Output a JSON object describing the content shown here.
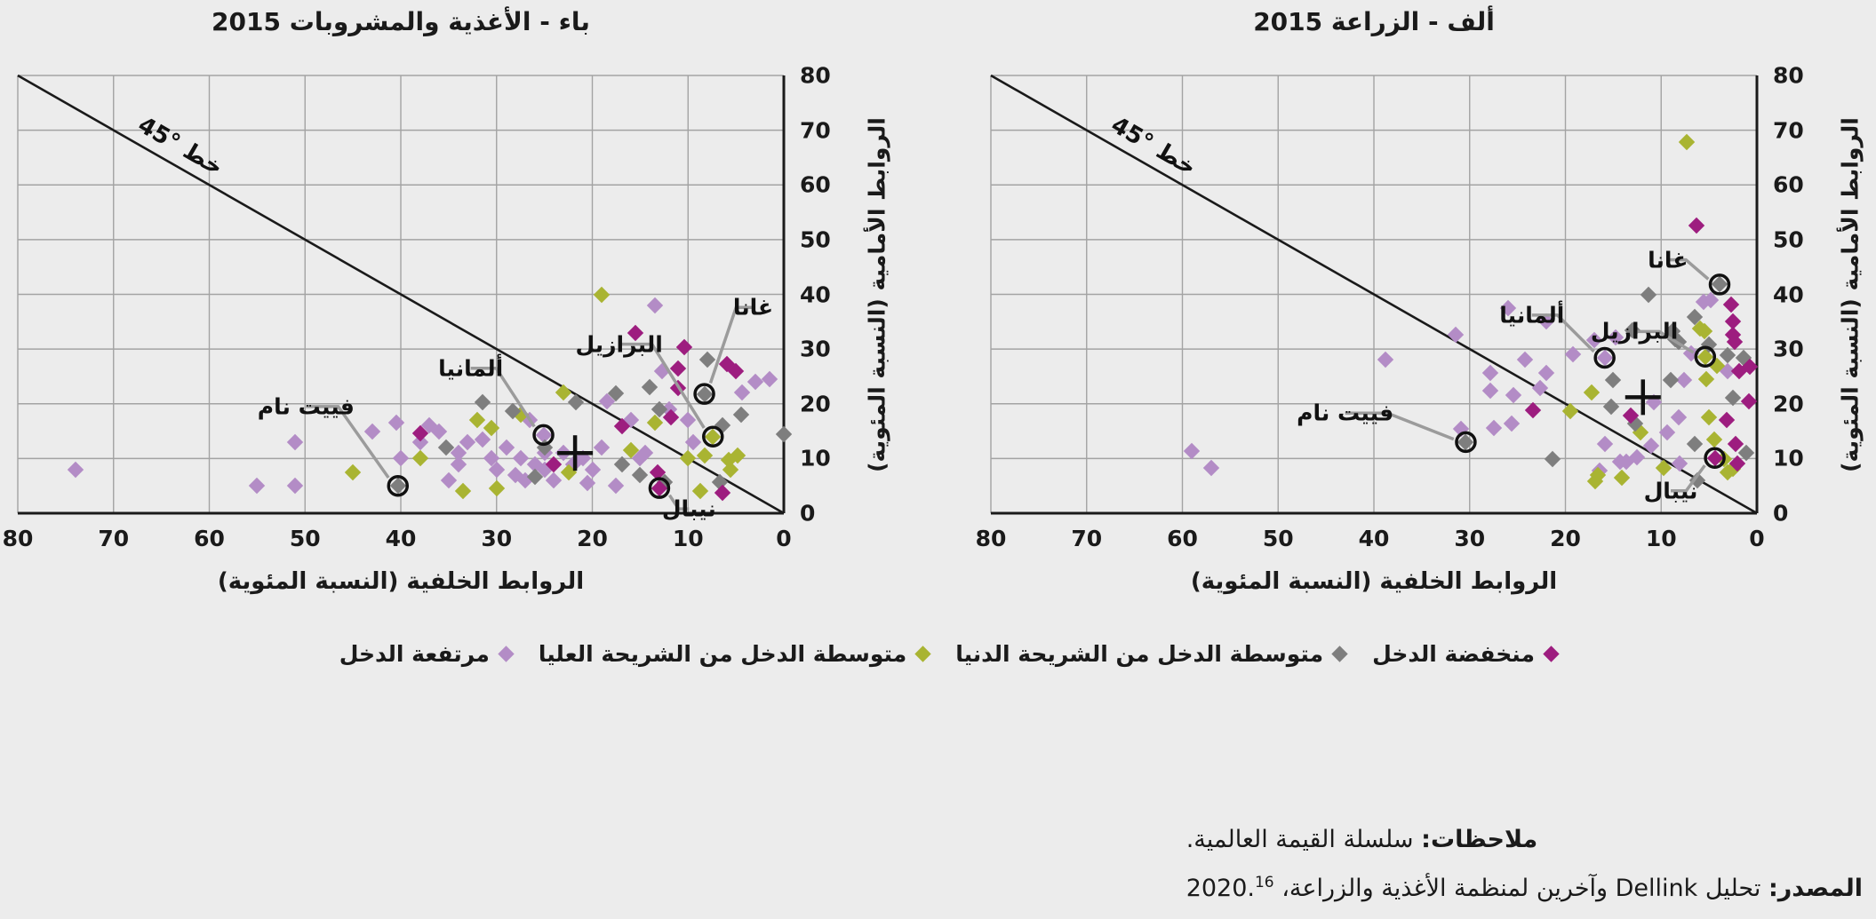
{
  "colors": {
    "low": "#9D1D7F",
    "lower_middle": "#7E7E7E",
    "upper_middle": "#A9B432",
    "high": "#B38CC6",
    "grid": "#A3A3A3",
    "axis": "#1A1A1A",
    "background": "#ECECEC",
    "leader": "#9B9B9B"
  },
  "legend": [
    {
      "key": "low",
      "label": "منخفضة الدخل"
    },
    {
      "key": "lower_middle",
      "label": "متوسطة الدخل من الشريحة الدنيا"
    },
    {
      "key": "upper_middle",
      "label": "متوسطة الدخل من الشريحة العليا"
    },
    {
      "key": "high",
      "label": "مرتفعة الدخل"
    }
  ],
  "axes": {
    "x_label": "الروابط الخلفية (النسبة المئوية)",
    "y_label": "الروابط الأمامية (النسبة المئوية)",
    "ticks": [
      0,
      10,
      20,
      30,
      40,
      50,
      60,
      70,
      80
    ],
    "max": 80
  },
  "line45_label": "خط °45",
  "notes": {
    "label": "ملاحظات:",
    "text": " سلسلة القيمة العالمية."
  },
  "source": {
    "label": "المصدر:",
    "text": " تحليل Dellink  وآخرين لمنظمة الأغذية والزراعة، 2020.",
    "sup": "16"
  },
  "chart_data": [
    {
      "id": "A",
      "type": "scatter",
      "title": "ألف - الزراعة 2015",
      "xlabel": "الروابط الخلفية (النسبة المئوية)",
      "ylabel": "الروابط الأمامية (النسبة المئوية)",
      "xlim": [
        80,
        0
      ],
      "ylim": [
        0,
        80
      ],
      "grid": true,
      "mean": [
        11.9,
        21.2
      ],
      "annotations": [
        {
          "label": "غانا",
          "x": 3.9,
          "y": 41.8,
          "lx": 9.3,
          "ly": 46.3
        },
        {
          "label": "ألمانيا",
          "x": 15.9,
          "y": 28.4,
          "lx": 23.5,
          "ly": 36.2
        },
        {
          "label": "البرازيل",
          "x": 5.4,
          "y": 28.6,
          "lx": 12.8,
          "ly": 33.2
        },
        {
          "label": "فييت نام",
          "x": 30.4,
          "y": 13,
          "lx": 43,
          "ly": 18.3
        },
        {
          "label": "نيبال",
          "x": 4.4,
          "y": 10.1,
          "lx": 9,
          "ly": 4.1
        }
      ],
      "series": {
        "high": [
          [
            59,
            11.4
          ],
          [
            57,
            8.3
          ],
          [
            38.8,
            28
          ],
          [
            31.5,
            32.6
          ],
          [
            26,
            37.5
          ],
          [
            22,
            35
          ],
          [
            27.8,
            25.6
          ],
          [
            24.2,
            28.1
          ],
          [
            22,
            25.6
          ],
          [
            27.8,
            22.4
          ],
          [
            25.4,
            21.6
          ],
          [
            22.6,
            22.9
          ],
          [
            19.2,
            29
          ],
          [
            17,
            31.6
          ],
          [
            14.8,
            32.1
          ],
          [
            30.9,
            15.4
          ],
          [
            27.5,
            15.6
          ],
          [
            25.6,
            16.4
          ],
          [
            15.9,
            12.7
          ],
          [
            16.4,
            7.8
          ],
          [
            14.3,
            9.4
          ],
          [
            13.6,
            9.4
          ],
          [
            12.5,
            10.2
          ],
          [
            11,
            12.3
          ],
          [
            10.8,
            20.3
          ],
          [
            9.4,
            14.8
          ],
          [
            8.2,
            17.5
          ],
          [
            8.1,
            9.1
          ],
          [
            7.6,
            24.4
          ],
          [
            6.9,
            29.2
          ],
          [
            5.6,
            38.6
          ],
          [
            4.8,
            38.9
          ],
          [
            3.1,
            26
          ],
          [
            15.9,
            28.4
          ]
        ],
        "upper_middle": [
          [
            7.3,
            67.8
          ],
          [
            5.9,
            33.8
          ],
          [
            5.5,
            33.3
          ],
          [
            4.2,
            27
          ],
          [
            5.3,
            24.5
          ],
          [
            5,
            17.5
          ],
          [
            4.5,
            13.5
          ],
          [
            3.4,
            9.9
          ],
          [
            2.5,
            8.1
          ],
          [
            9.7,
            8.3
          ],
          [
            14.1,
            6.5
          ],
          [
            16.6,
            7
          ],
          [
            16.9,
            5.9
          ],
          [
            17.3,
            22.1
          ],
          [
            19.5,
            18.7
          ],
          [
            12.2,
            14.8
          ],
          [
            3.1,
            7.5
          ],
          [
            5.4,
            28.6
          ]
        ],
        "lower_middle": [
          [
            30.4,
            13
          ],
          [
            21.3,
            9.9
          ],
          [
            15.2,
            19.5
          ],
          [
            15,
            24.4
          ],
          [
            13,
            33.5
          ],
          [
            11.3,
            39.9
          ],
          [
            8.8,
            33.3
          ],
          [
            8.2,
            31.3
          ],
          [
            6.5,
            35.9
          ],
          [
            6.5,
            12.7
          ],
          [
            6.2,
            6
          ],
          [
            5,
            30.8
          ],
          [
            8.5,
            31.8
          ],
          [
            3.1,
            28.9
          ],
          [
            2.5,
            21.1
          ],
          [
            1.4,
            28.4
          ],
          [
            1.1,
            11
          ],
          [
            9,
            24.4
          ],
          [
            12.7,
            16.4
          ],
          [
            3.9,
            41.8
          ]
        ],
        "low": [
          [
            6.3,
            52.5
          ],
          [
            2.7,
            38.1
          ],
          [
            2.5,
            35
          ],
          [
            2.5,
            32.6
          ],
          [
            2.3,
            31.3
          ],
          [
            1.9,
            26
          ],
          [
            0.8,
            20.5
          ],
          [
            0.7,
            26.8
          ],
          [
            3.2,
            17
          ],
          [
            2.2,
            12.7
          ],
          [
            2,
            9.1
          ],
          [
            13.2,
            17.9
          ],
          [
            23.4,
            18.8
          ],
          [
            4.4,
            10.1
          ]
        ]
      }
    },
    {
      "id": "B",
      "type": "scatter",
      "title": "باء - الأغذية والمشروبات 2015",
      "xlabel": "الروابط الخلفية (النسبة المئوية)",
      "ylabel": "الروابط الأمامية (النسبة المئوية)",
      "xlim": [
        80,
        0
      ],
      "ylim": [
        0,
        80
      ],
      "grid": true,
      "mean": [
        21.8,
        11
      ],
      "annotations": [
        {
          "label": "غانا",
          "x": 8.3,
          "y": 21.8,
          "lx": 3.2,
          "ly": 37.6
        },
        {
          "label": "ألمانيا",
          "x": 25.1,
          "y": 14.3,
          "lx": 32.7,
          "ly": 26.5
        },
        {
          "label": "البرازيل",
          "x": 7.4,
          "y": 14,
          "lx": 17.2,
          "ly": 30.9
        },
        {
          "label": "فييت نام",
          "x": 40.3,
          "y": 5,
          "lx": 49.9,
          "ly": 19.5
        },
        {
          "label": "نيبال",
          "x": 13,
          "y": 4.6,
          "lx": 9.9,
          "ly": 0.8
        }
      ],
      "series": {
        "high": [
          [
            74,
            8
          ],
          [
            55,
            5
          ],
          [
            51,
            5
          ],
          [
            51,
            13
          ],
          [
            43,
            15
          ],
          [
            40.5,
            16.5
          ],
          [
            40,
            10
          ],
          [
            38,
            13
          ],
          [
            37,
            16
          ],
          [
            36,
            15
          ],
          [
            35,
            6
          ],
          [
            34,
            11
          ],
          [
            34,
            9
          ],
          [
            33,
            13
          ],
          [
            31.5,
            13.5
          ],
          [
            30.5,
            10
          ],
          [
            30,
            8
          ],
          [
            29,
            12
          ],
          [
            28,
            7
          ],
          [
            27.5,
            10
          ],
          [
            27,
            6
          ],
          [
            26.5,
            17
          ],
          [
            26,
            9
          ],
          [
            25,
            11
          ],
          [
            25,
            8
          ],
          [
            24,
            6
          ],
          [
            23,
            11
          ],
          [
            22,
            9
          ],
          [
            21,
            10
          ],
          [
            20.5,
            5.5
          ],
          [
            20,
            8
          ],
          [
            19,
            12
          ],
          [
            18.5,
            20.5
          ],
          [
            17.5,
            5
          ],
          [
            16,
            17
          ],
          [
            15,
            10
          ],
          [
            14.5,
            11
          ],
          [
            13.5,
            38
          ],
          [
            12.7,
            26
          ],
          [
            12,
            19
          ],
          [
            10,
            17
          ],
          [
            9.5,
            13
          ],
          [
            4.4,
            22
          ],
          [
            3,
            24
          ],
          [
            1.5,
            24.5
          ],
          [
            25.1,
            14.3
          ]
        ],
        "upper_middle": [
          [
            45,
            7.5
          ],
          [
            38,
            10
          ],
          [
            33.5,
            4
          ],
          [
            32,
            17
          ],
          [
            30.5,
            15.5
          ],
          [
            30,
            4.5
          ],
          [
            27.5,
            18
          ],
          [
            23,
            22
          ],
          [
            22.5,
            7.5
          ],
          [
            19,
            40
          ],
          [
            16,
            11.5
          ],
          [
            13.5,
            16.5
          ],
          [
            10,
            10
          ],
          [
            8.3,
            10.5
          ],
          [
            8.7,
            4
          ],
          [
            5.8,
            9.8
          ],
          [
            5.6,
            8
          ],
          [
            4.8,
            10.6
          ],
          [
            7.4,
            14
          ]
        ],
        "lower_middle": [
          [
            40.3,
            5
          ],
          [
            35.3,
            12
          ],
          [
            31.5,
            20.3
          ],
          [
            28.3,
            18.7
          ],
          [
            26,
            6.7
          ],
          [
            21.7,
            20.3
          ],
          [
            17.5,
            21.9
          ],
          [
            14,
            23
          ],
          [
            13,
            19
          ],
          [
            12.4,
            5.7
          ],
          [
            16.9,
            8.9
          ],
          [
            15,
            7
          ],
          [
            8,
            28
          ],
          [
            8.3,
            21.8
          ],
          [
            6.4,
            16
          ],
          [
            4.5,
            18
          ],
          [
            6.7,
            5.7
          ],
          [
            0,
            14.5
          ],
          [
            25,
            12
          ]
        ],
        "low": [
          [
            38,
            14.6
          ],
          [
            15.5,
            33
          ],
          [
            11,
            26.5
          ],
          [
            10.4,
            30.3
          ],
          [
            5.9,
            27.3
          ],
          [
            5,
            26
          ],
          [
            11,
            22.8
          ],
          [
            16.9,
            15.9
          ],
          [
            11.8,
            17.6
          ],
          [
            6.4,
            3.7
          ],
          [
            13.2,
            7.5
          ],
          [
            24,
            9
          ],
          [
            13,
            4.6
          ]
        ]
      }
    }
  ],
  "layout_note": "scatter of backward vs forward linkages, x-axis reversed"
}
